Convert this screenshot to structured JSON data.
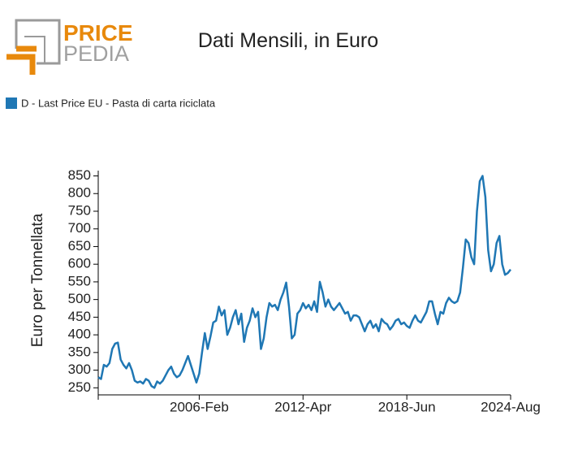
{
  "logo": {
    "top": "PRICE",
    "bottom": "PEDIA"
  },
  "chart_data": {
    "type": "line",
    "title": "Dati Mensili, in Euro",
    "ylabel": "Euro per Tonnellata",
    "legend_position": "top-left",
    "x": [
      "2000-Feb",
      "2000-Apr",
      "2000-Jun",
      "2000-Aug",
      "2000-Oct",
      "2000-Dec",
      "2001-Feb",
      "2001-Apr",
      "2001-Jun",
      "2001-Aug",
      "2001-Oct",
      "2001-Dec",
      "2002-Feb",
      "2002-Apr",
      "2002-Jun",
      "2002-Aug",
      "2002-Oct",
      "2002-Dec",
      "2003-Feb",
      "2003-Apr",
      "2003-Jun",
      "2003-Aug",
      "2003-Oct",
      "2003-Dec",
      "2004-Feb",
      "2004-Apr",
      "2004-Jun",
      "2004-Aug",
      "2004-Oct",
      "2004-Dec",
      "2005-Feb",
      "2005-Apr",
      "2005-Jun",
      "2005-Aug",
      "2005-Oct",
      "2005-Dec",
      "2006-Feb",
      "2006-Apr",
      "2006-Jun",
      "2006-Aug",
      "2006-Oct",
      "2006-Dec",
      "2007-Feb",
      "2007-Apr",
      "2007-Jun",
      "2007-Aug",
      "2007-Oct",
      "2007-Dec",
      "2008-Feb",
      "2008-Apr",
      "2008-Jun",
      "2008-Aug",
      "2008-Oct",
      "2008-Dec",
      "2009-Feb",
      "2009-Apr",
      "2009-Jun",
      "2009-Aug",
      "2009-Oct",
      "2009-Dec",
      "2010-Feb",
      "2010-Apr",
      "2010-Jun",
      "2010-Aug",
      "2010-Oct",
      "2010-Dec",
      "2011-Feb",
      "2011-Apr",
      "2011-Jun",
      "2011-Aug",
      "2011-Oct",
      "2011-Dec",
      "2012-Feb",
      "2012-Apr",
      "2012-Jun",
      "2012-Aug",
      "2012-Oct",
      "2012-Dec",
      "2013-Feb",
      "2013-Apr",
      "2013-Jun",
      "2013-Aug",
      "2013-Oct",
      "2013-Dec",
      "2014-Feb",
      "2014-Apr",
      "2014-Jun",
      "2014-Aug",
      "2014-Oct",
      "2014-Dec",
      "2015-Feb",
      "2015-Apr",
      "2015-Jun",
      "2015-Aug",
      "2015-Oct",
      "2015-Dec",
      "2016-Feb",
      "2016-Apr",
      "2016-Jun",
      "2016-Aug",
      "2016-Oct",
      "2016-Dec",
      "2017-Feb",
      "2017-Apr",
      "2017-Jun",
      "2017-Aug",
      "2017-Oct",
      "2017-Dec",
      "2018-Feb",
      "2018-Apr",
      "2018-Jun",
      "2018-Aug",
      "2018-Oct",
      "2018-Dec",
      "2019-Feb",
      "2019-Apr",
      "2019-Jun",
      "2019-Aug",
      "2019-Oct",
      "2019-Dec",
      "2020-Feb",
      "2020-Apr",
      "2020-Jun",
      "2020-Aug",
      "2020-Oct",
      "2020-Dec",
      "2021-Feb",
      "2021-Apr",
      "2021-Jun",
      "2021-Aug",
      "2021-Oct",
      "2021-Dec",
      "2022-Feb",
      "2022-Apr",
      "2022-Jun",
      "2022-Aug",
      "2022-Oct",
      "2022-Dec",
      "2023-Feb",
      "2023-Apr",
      "2023-Jun",
      "2023-Aug",
      "2023-Oct",
      "2023-Dec",
      "2024-Feb",
      "2024-Apr",
      "2024-Jun",
      "2024-Aug"
    ],
    "series": [
      {
        "name": "D - Last Price EU - Pasta di carta riciclata",
        "color": "#1f77b4",
        "values": [
          280,
          275,
          315,
          310,
          320,
          360,
          375,
          378,
          330,
          315,
          305,
          320,
          300,
          270,
          265,
          268,
          262,
          275,
          270,
          255,
          250,
          268,
          262,
          270,
          285,
          300,
          310,
          290,
          280,
          285,
          300,
          320,
          340,
          315,
          290,
          265,
          290,
          350,
          405,
          360,
          395,
          435,
          440,
          480,
          455,
          470,
          400,
          420,
          450,
          470,
          430,
          460,
          380,
          420,
          440,
          475,
          450,
          465,
          360,
          390,
          450,
          490,
          480,
          485,
          470,
          500,
          520,
          548,
          480,
          390,
          400,
          460,
          470,
          490,
          475,
          485,
          470,
          495,
          465,
          550,
          520,
          480,
          500,
          480,
          470,
          480,
          490,
          475,
          460,
          465,
          440,
          455,
          455,
          450,
          430,
          410,
          430,
          440,
          420,
          430,
          410,
          445,
          435,
          430,
          415,
          425,
          440,
          445,
          430,
          435,
          425,
          420,
          440,
          455,
          440,
          435,
          450,
          465,
          495,
          495,
          460,
          430,
          465,
          460,
          490,
          505,
          495,
          490,
          495,
          520,
          590,
          670,
          660,
          620,
          600,
          750,
          835,
          850,
          790,
          640,
          580,
          600,
          660,
          680,
          600,
          570,
          575,
          585
        ]
      }
    ],
    "ylim": [
      230,
      865
    ],
    "yticks": [
      250,
      300,
      350,
      400,
      450,
      500,
      550,
      600,
      650,
      700,
      750,
      800,
      850
    ],
    "xticks": [
      "2006-Feb",
      "2012-Apr",
      "2018-Jun",
      "2024-Aug"
    ]
  }
}
